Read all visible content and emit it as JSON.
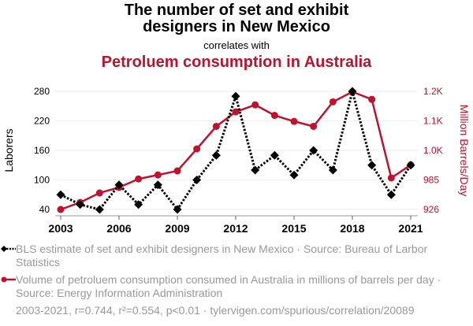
{
  "header": {
    "title_line1": "The number of set and exhibit",
    "title_line2": "designers in New Mexico",
    "subtitle": "correlates with",
    "title2": "Petroluem consumption in Australia"
  },
  "colors": {
    "series1": "#000000",
    "series2": "#c0112e",
    "legend_text": "#999999",
    "grid": "#eeeeee"
  },
  "legend": [
    {
      "icon": "black-dotted-diamond-line",
      "label": "BLS estimate of set and exhibit designers in New Mexico · Source: Bureau of Larbor Statistics"
    },
    {
      "icon": "red-solid-circle-line",
      "label": "Volume of petroluem consumption consumed in Australia in millions of barrels per day · Source: Energy Information Administration"
    }
  ],
  "footer": "2003-2021, r=0.744, r²=0.554, p<0.01 · tylervigen.com/spurious/correlation/20089",
  "chart_data": {
    "type": "line",
    "title": "The number of set and exhibit designers in New Mexico correlates with Petroluem consumption in Australia",
    "x": [
      2003,
      2004,
      2005,
      2006,
      2007,
      2008,
      2009,
      2010,
      2011,
      2012,
      2013,
      2014,
      2015,
      2016,
      2017,
      2018,
      2019,
      2020,
      2021
    ],
    "xticks": [
      "2003",
      "2006",
      "2009",
      "2012",
      "2015",
      "2018",
      "2021"
    ],
    "xlim": [
      2003,
      2021
    ],
    "ylabel_left": "Laborers",
    "ylabel_right": "Million Barrels/Day",
    "yticks_left": [
      "40",
      "100",
      "160",
      "220",
      "280"
    ],
    "ylim_left": [
      40,
      280
    ],
    "yticks_right": [
      "926",
      "985",
      "1.0K",
      "1.1K",
      "1.2K"
    ],
    "ylim_right": [
      926,
      1162
    ],
    "grid": true,
    "series": [
      {
        "name": "BLS estimate of set and exhibit designers in New Mexico",
        "axis": "left",
        "style": "dotted-diamond",
        "values": [
          70,
          50,
          40,
          90,
          50,
          90,
          40,
          100,
          150,
          270,
          120,
          150,
          110,
          160,
          120,
          280,
          130,
          70,
          130
        ]
      },
      {
        "name": "Volume of petroluem consumption consumed in Australia",
        "axis": "right",
        "style": "solid-circle",
        "values": [
          926,
          940,
          959,
          970,
          987,
          995,
          1003,
          1047,
          1092,
          1121,
          1135,
          1114,
          1102,
          1092,
          1141,
          1161,
          1146,
          989,
          1015
        ]
      }
    ]
  }
}
